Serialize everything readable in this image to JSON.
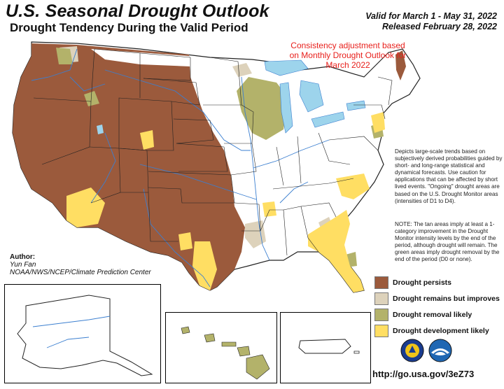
{
  "header": {
    "title": "U.S. Seasonal Drought Outlook",
    "subtitle": "Drought Tendency During the Valid Period",
    "valid": "Valid for March 1 - May 31, 2022",
    "released": "Released February 28, 2022"
  },
  "annotation": {
    "consistency": "Consistency adjustment based on Monthly Drought Outlook for March 2022"
  },
  "description": {
    "p1": "Depicts large-scale trends based on subjectively derived probabilities guided by short- and long-range statistical and dynamical forecasts. Use caution for applications that can be affected by short lived events. \"Ongoing\" drought areas are based on the U.S. Drought Monitor areas (intensities of D1 to D4).",
    "p2": "NOTE: The tan areas imply at least a 1-category improvement in the Drought Monitor intensity levels by the end of the period, although drought will remain. The green areas imply drought removal by the end of the period (D0 or none)."
  },
  "author": {
    "label": "Author:",
    "name": "Yun Fan",
    "org": "NOAA/NWS/NCEP/Climate Prediction Center"
  },
  "legend": [
    {
      "label": "Drought persists",
      "color": "#9b5a3c"
    },
    {
      "label": "Drought remains but improves",
      "color": "#ddd2bb"
    },
    {
      "label": "Drought removal likely",
      "color": "#b3b26a"
    },
    {
      "label": "Drought development likely",
      "color": "#ffde63"
    }
  ],
  "colors": {
    "persists": "#9b5a3c",
    "improves": "#ddd2bb",
    "removal": "#b3b26a",
    "development": "#ffde63",
    "water": "#9dd4ec",
    "rivers": "#3b7fd0",
    "annotation": "#e8201c"
  },
  "url": "http://go.usa.gov/3eZ73",
  "logos": [
    "noaa-nws-icon",
    "noaa-icon"
  ]
}
